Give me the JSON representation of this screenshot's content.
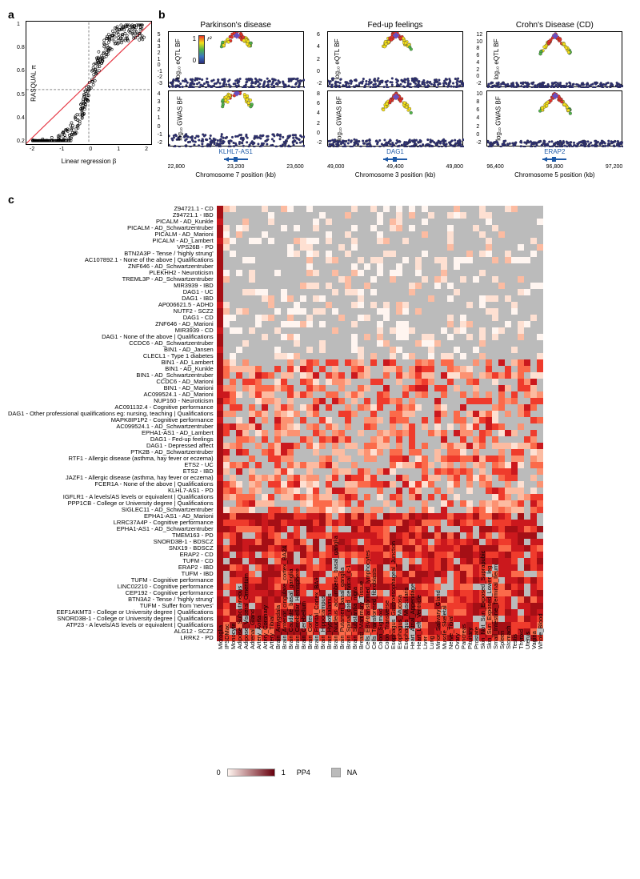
{
  "panelA": {
    "label": "a",
    "xlabel": "Linear regression β",
    "ylabel": "RASQUAL π",
    "xlim": [
      -2,
      2
    ],
    "ylim": [
      0.1,
      1.0
    ],
    "xticks": [
      -2,
      -1,
      0,
      1,
      2
    ],
    "yticks": [
      0.2,
      0.4,
      0.5,
      0.6,
      0.8,
      1.0
    ],
    "hline": 0.5,
    "vline": 0,
    "fit_color": "#e63946",
    "point_color": "#000000",
    "point_fill": "none",
    "n_points": 380,
    "background": "#ffffff"
  },
  "panelB": {
    "label": "b",
    "r2_legend": {
      "label": "r²",
      "stops": [
        "#2b2e7a",
        "#3a76c2",
        "#4fb547",
        "#f6e11a",
        "#e63228"
      ]
    },
    "loci": [
      {
        "title": "Parkinson's disease",
        "gene": "KLHL7-AS1",
        "chrom": "Chromosome 7 position (kb)",
        "xlim": [
          22800,
          23600
        ],
        "xticks": [
          22800,
          23200,
          23600
        ],
        "eqtl": {
          "ylabel": "log₁₀ eQTL BF",
          "ylim": [
            -3,
            5
          ],
          "yticks": [
            -3,
            -2,
            -1,
            0,
            1,
            2,
            3,
            4,
            5
          ],
          "peak_x": 23200,
          "peak_y": 4.5
        },
        "gwas": {
          "ylabel": "log₁₀ GWAS BF",
          "ylim": [
            -2,
            4
          ],
          "yticks": [
            -2,
            -1,
            0,
            1,
            2,
            3,
            4
          ],
          "peak_x": 23200,
          "peak_y": 3.8
        }
      },
      {
        "title": "Fed-up feelings",
        "gene": "DAG1",
        "chrom": "Chromosome 3 position (kb)",
        "xlim": [
          49000,
          49800
        ],
        "xticks": [
          49000,
          49400,
          49800
        ],
        "eqtl": {
          "ylabel": "log₁₀ eQTL BF",
          "ylim": [
            -2,
            6
          ],
          "yticks": [
            -2,
            0,
            2,
            4,
            6
          ],
          "peak_x": 49400,
          "peak_y": 5.5
        },
        "gwas": {
          "ylabel": "log₁₀ GWAS BF",
          "ylim": [
            -2,
            8
          ],
          "yticks": [
            -2,
            0,
            2,
            4,
            6,
            8
          ],
          "peak_x": 49400,
          "peak_y": 7
        }
      },
      {
        "title": "Crohn's Disease (CD)",
        "gene": "ERAP2",
        "chrom": "Chromosome 5 position (kb)",
        "xlim": [
          96400,
          97200
        ],
        "xticks": [
          96400,
          96800,
          97200
        ],
        "eqtl": {
          "ylabel": "log₁₀ eQTL BF",
          "ylim": [
            -2,
            12
          ],
          "yticks": [
            -2,
            0,
            2,
            4,
            6,
            8,
            10,
            12
          ],
          "peak_x": 96800,
          "peak_y": 11
        },
        "gwas": {
          "ylabel": "log₁₀ GWAS BF",
          "ylim": [
            -2,
            10
          ],
          "yticks": [
            -2,
            0,
            2,
            4,
            6,
            8,
            10
          ],
          "peak_x": 96800,
          "peak_y": 9
        }
      }
    ]
  },
  "panelC": {
    "label": "c",
    "legend": {
      "min": 0.0,
      "max": 1.0,
      "label": "PP4",
      "na_label": "NA",
      "na_color": "#bbbbbb",
      "gradient": [
        "#fff5f0",
        "#fee0d2",
        "#fcbba1",
        "#fc9272",
        "#fb6a4a",
        "#ef3b2c",
        "#cb181d",
        "#a50f15",
        "#67000d"
      ]
    },
    "columns": [
      "Microglia",
      "IPSDMac",
      "Monocyte",
      "Adipose_Subcutaneous",
      "Adipose_Visceral_Omentum",
      "Adrenal_Gland",
      "Artery_Aorta",
      "Artery_Coronary",
      "Artery_Tibial",
      "Brain_Amygdala",
      "Brain_Anterior_cingulate_cortex_BA24",
      "Brain_Caudate_basal_ganglia",
      "Brain_Cerebellar_Hemisphere",
      "Brain_Cerebellum",
      "Brain_Cortex",
      "Brain_Frontal_Cortex_BA9",
      "Brain_Hippocampus",
      "Brain_Hypothalamus",
      "Brain_Nucleus_accumbens_basal_ganglia",
      "Brain_Putamen_basal_ganglia",
      "Brain_Spinal_cord_cervical_c-1",
      "Brain_Substantia_nigra",
      "Breast_Mammary_Tissue",
      "Cells_EBV-transformed_lymphocytes",
      "Cells_Transformed_fibroblasts",
      "Colon_Sigmoid",
      "Colon_Transverse",
      "Esophagus_Gastroesophageal_Junction",
      "Esophagus_Mucosa",
      "Esophagus_Muscularis",
      "Heart_Atrial_Appendage",
      "Heart_Left_Ventricle",
      "Liver",
      "Lung",
      "Minor_Salivary_Gland",
      "Muscle_Skeletal",
      "Nerve_Tibial",
      "Ovary",
      "Pancreas",
      "Pituitary",
      "Prostate",
      "Skin_Not_Sun_Exposed_Suprapubic",
      "Skin_Sun_Exposed_Lower_leg",
      "Small_Intestine_Terminal_Ileum",
      "Spleen",
      "Stomach",
      "Testis",
      "Thyroid",
      "Uterus",
      "Vagina",
      "Whole_Blood"
    ],
    "rows": [
      "Z94721.1 - CD",
      "Z94721.1 - IBD",
      "PICALM - AD_Kunkle",
      "PICALM - AD_Schwartzentruber",
      "PICALM - AD_Marioni",
      "PICALM - AD_Lambert",
      "VPS26B - PD",
      "BTN2A3P - Tense / 'highly strung'",
      "AC107892.1 - None of the above | Qualifications",
      "ZNF646 - AD_Schwartzentruber",
      "PLEKHH2 - Neuroticism",
      "TREML3P - AD_Schwartzentruber",
      "MIR3939 - IBD",
      "DAG1 - UC",
      "DAG1 - IBD",
      "AP006621.5 - ADHD",
      "NUTF2 - SCZ2",
      "DAG1 - CD",
      "ZNF646 - AD_Marioni",
      "MIR3939 - CD",
      "DAG1 - None of the above | Qualifications",
      "CCDC6 - AD_Schwartzentruber",
      "BIN1 - AD_Jansen",
      "CLECL1 - Type 1 diabetes",
      "BIN1 - AD_Lambert",
      "BIN1 - AD_Kunkle",
      "BIN1 - AD_Schwartzentruber",
      "CCDC6 - AD_Marioni",
      "BIN1 - AD_Marioni",
      "AC099524.1 - AD_Marioni",
      "NUP160 - Neuroticism",
      "AC091132.4 - Cognitive performance",
      "DAG1 - Other professional qualifications eg: nursing, teaching | Qualifications",
      "MAPK8IP1P2 - Cognitive performance",
      "AC099524.1 - AD_Schwartzentruber",
      "EPHA1-AS1 - AD_Lambert",
      "DAG1 - Fed-up feelings",
      "DAG1 - Depressed affect",
      "PTK2B - AD_Schwartzentruber",
      "RTF1 - Allergic disease (asthma, hay fever or eczema)",
      "ETS2 - UC",
      "ETS2 - IBD",
      "JAZF1 - Allergic disease (asthma, hay fever or eczema)",
      "FCER1A - None of the above | Qualifications",
      "KLHL7-AS1 - PD",
      "IGFLR1 - A levels/AS levels or equivalent | Qualifications",
      "PPP1CB - College or University degree | Qualifications",
      "SIGLEC11 - AD_Schwartzentruber",
      "EPHA1-AS1 - AD_Marioni",
      "LRRC37A4P - Cognitive performance",
      "EPHA1-AS1 - AD_Schwartzentruber",
      "TMEM163 - PD",
      "SNORD3B-1 - BDSCZ",
      "SNX19 - BDSCZ",
      "ERAP2 - CD",
      "TUFM - CD",
      "ERAP2 - IBD",
      "TUFM - IBD",
      "TUFM - Cognitive performance",
      "LINC02210 - Cognitive performance",
      "CEP192 - Cognitive performance",
      "BTN3A2 - Tense / 'highly strung'",
      "TUFM - Suffer from 'nerves'",
      "EEF1AKMT3 - College or University degree | Qualifications",
      "SNORD3B-1 - College or University degree | Qualifications",
      "ATP23 - A levels/AS levels or equivalent | Qualifications",
      "ALG12 - SCZ2",
      "LRRK2 - PD"
    ],
    "first_col_all_high": true
  }
}
